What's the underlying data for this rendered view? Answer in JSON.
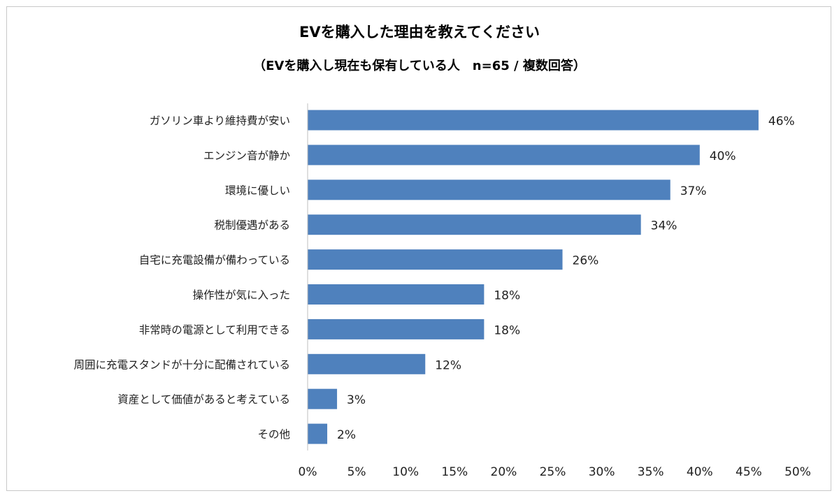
{
  "chart_data": {
    "type": "bar",
    "orientation": "horizontal",
    "title": "EVを購入した理由を教えてください",
    "subtitle": "（EVを購入し現在も保有している人　n=65 / 複数回答）",
    "categories": [
      "ガソリン車より維持費が安い",
      "エンジン音が静か",
      "環境に優しい",
      "税制優遇がある",
      "自宅に充電設備が備わっている",
      "操作性が気に入った",
      "非常時の電源として利用できる",
      "周囲に充電スタンドが十分に配備されている",
      "資産として価値があると考えている",
      "その他"
    ],
    "values": [
      46,
      40,
      37,
      34,
      26,
      18,
      18,
      12,
      3,
      2
    ],
    "data_labels": [
      "46%",
      "40%",
      "37%",
      "34%",
      "26%",
      "18%",
      "18%",
      "12%",
      "3%",
      "2%"
    ],
    "xlim": [
      0,
      50
    ],
    "x_ticks": [
      0,
      5,
      10,
      15,
      20,
      25,
      30,
      35,
      40,
      45,
      50
    ],
    "x_tick_labels": [
      "0%",
      "5%",
      "10%",
      "15%",
      "20%",
      "25%",
      "30%",
      "35%",
      "40%",
      "45%",
      "50%"
    ],
    "xlabel": "",
    "ylabel": "",
    "grid": false,
    "legend": "none",
    "bar_color": "#4f81bd",
    "axis_color": "#bfbfbf"
  }
}
